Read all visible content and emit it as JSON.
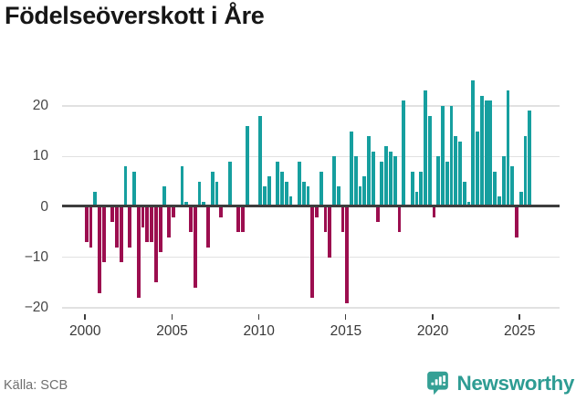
{
  "page": {
    "title": "Födelseöverskott i Åre",
    "source_label": "Källa: SCB",
    "brand_name": "Newsworthy"
  },
  "colors": {
    "positive_bar": "#169f9f",
    "negative_bar": "#9c0e4f",
    "zero_line": "#3d3d3d",
    "gridline": "#e1e1e1",
    "logo_teal": "#35a095",
    "brand_text": "#2e9c93"
  },
  "chart_data": {
    "type": "bar",
    "title": "Födelseöverskott i Åre",
    "source": "Källa: SCB",
    "xlabel": "",
    "ylabel": "",
    "interval": "quarterly",
    "start_period": "2000-Q1",
    "end_period": "2025-Q3",
    "ylim": [
      -21,
      26
    ],
    "grid": "horizontal",
    "y_ticks": [
      {
        "label": "20",
        "value": 20
      },
      {
        "label": "10",
        "value": 10
      },
      {
        "label": "0",
        "value": 0
      },
      {
        "label": "−10",
        "value": -10
      },
      {
        "label": "−20",
        "value": -20
      }
    ],
    "x_ticks": [
      2000,
      2005,
      2010,
      2015,
      2020,
      2025
    ],
    "values": [
      -7,
      -8,
      3,
      -17,
      -11,
      0,
      -3,
      -8,
      -11,
      8,
      -8,
      7,
      -18,
      -4,
      -7,
      -7,
      -15,
      -9,
      4,
      -6,
      -2,
      0,
      8,
      1,
      -5,
      -16,
      5,
      1,
      -8,
      7,
      5,
      -2,
      0,
      9,
      0,
      -5,
      -5,
      16,
      0,
      0,
      18,
      4,
      6,
      0,
      9,
      7,
      5,
      2,
      0,
      9,
      5,
      4,
      -18,
      -2,
      7,
      -5,
      -10,
      10,
      4,
      -5,
      -19,
      15,
      10,
      4,
      6,
      14,
      11,
      -3,
      9,
      12,
      11,
      10,
      -5,
      21,
      0,
      7,
      3,
      7,
      23,
      18,
      -2,
      10,
      20,
      9,
      20,
      14,
      13,
      5,
      1,
      25,
      15,
      22,
      21,
      21,
      7,
      2,
      10,
      23,
      8,
      -6,
      3,
      14,
      19
    ]
  }
}
